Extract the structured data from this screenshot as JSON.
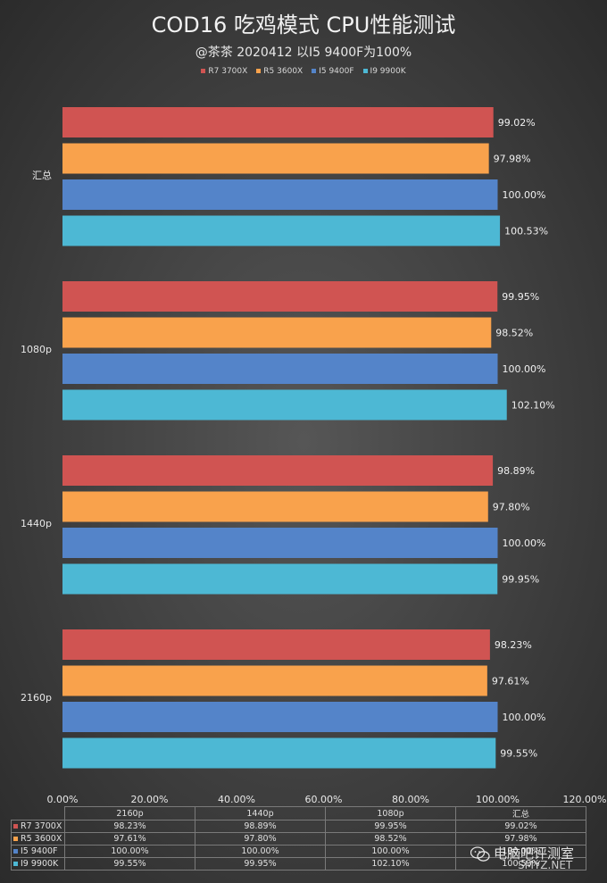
{
  "title": "COD16 吃鸡模式 CPU性能测试",
  "subtitle": "@茶茶 2020412  以I5 9400F为100%",
  "watermark": {
    "text": "电脑吧评测室",
    "site": "SMYZ.NET"
  },
  "chart_data": {
    "type": "bar",
    "orientation": "horizontal",
    "categories": [
      "汇总",
      "1080p",
      "1440p",
      "2160p"
    ],
    "series": [
      {
        "name": "R7 3700X",
        "color": "#d05452",
        "values": [
          99.02,
          99.95,
          98.89,
          98.23
        ]
      },
      {
        "name": "R5 3600X",
        "color": "#f9a24c",
        "values": [
          97.98,
          98.52,
          97.8,
          97.61
        ]
      },
      {
        "name": "I5 9400F",
        "color": "#5484c9",
        "values": [
          100.0,
          100.0,
          100.0,
          100.0
        ]
      },
      {
        "name": "I9 9900K",
        "color": "#4db8d4",
        "values": [
          100.53,
          102.1,
          99.95,
          99.55
        ]
      }
    ],
    "data_labels": [
      [
        "99.02%",
        "99.95%",
        "98.89%",
        "98.23%"
      ],
      [
        "97.98%",
        "98.52%",
        "97.80%",
        "97.61%"
      ],
      [
        "100.00%",
        "100.00%",
        "100.00%",
        "100.00%"
      ],
      [
        "100.53%",
        "102.10%",
        "99.95%",
        "99.55%"
      ]
    ],
    "xlim": [
      0,
      120
    ],
    "xticks": [
      "0.00%",
      "20.00%",
      "40.00%",
      "60.00%",
      "80.00%",
      "100.00%",
      "120.00%"
    ],
    "legend_position": "top",
    "grid": false
  },
  "table": {
    "headers": [
      "2160p",
      "1440p",
      "1080p",
      "汇总"
    ],
    "rows": [
      {
        "name": "R7 3700X",
        "color": "#d05452",
        "cells": [
          "98.23%",
          "98.89%",
          "99.95%",
          "99.02%"
        ]
      },
      {
        "name": "R5 3600X",
        "color": "#f9a24c",
        "cells": [
          "97.61%",
          "97.80%",
          "98.52%",
          "97.98%"
        ]
      },
      {
        "name": "I5 9400F",
        "color": "#5484c9",
        "cells": [
          "100.00%",
          "100.00%",
          "100.00%",
          "100.00%"
        ]
      },
      {
        "name": "I9 9900K",
        "color": "#4db8d4",
        "cells": [
          "99.55%",
          "99.95%",
          "102.10%",
          "100.53%"
        ]
      }
    ]
  }
}
